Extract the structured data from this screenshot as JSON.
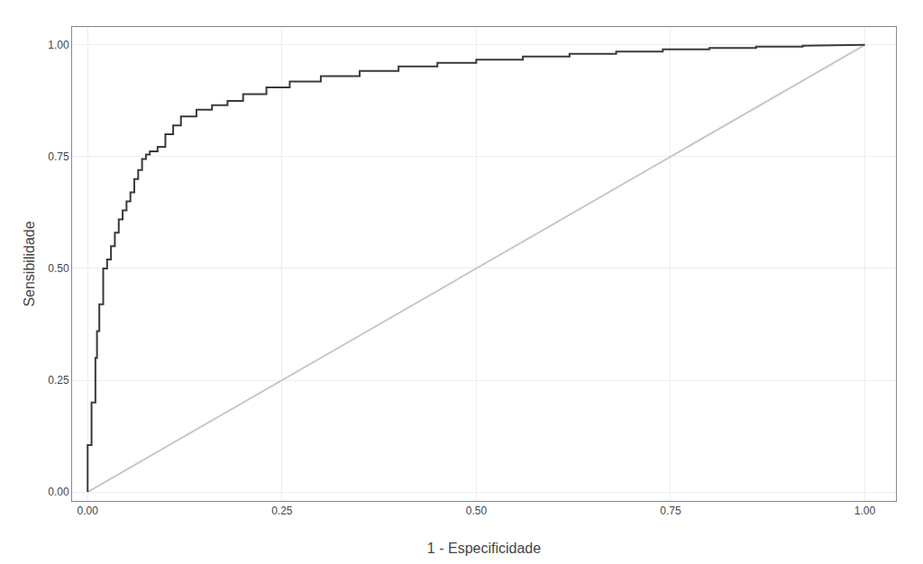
{
  "chart_data": {
    "type": "line",
    "xlabel": "1 - Especificidade",
    "ylabel": "Sensibilidade",
    "grid": true,
    "xlim": [
      -0.02,
      1.04
    ],
    "ylim": [
      -0.02,
      1.04
    ],
    "xticks": [
      {
        "value": 0.0,
        "label": "0.00"
      },
      {
        "value": 0.25,
        "label": "0.25"
      },
      {
        "value": 0.5,
        "label": "0.50"
      },
      {
        "value": 0.75,
        "label": "0.75"
      },
      {
        "value": 1.0,
        "label": "1.00"
      }
    ],
    "yticks": [
      {
        "value": 0.0,
        "label": "0.00"
      },
      {
        "value": 0.25,
        "label": "0.25"
      },
      {
        "value": 0.5,
        "label": "0.50"
      },
      {
        "value": 0.75,
        "label": "0.75"
      },
      {
        "value": 1.0,
        "label": "1.00"
      }
    ],
    "series": [
      {
        "color": "#c8c8c8",
        "x": [
          0,
          1
        ],
        "values": [
          0,
          1
        ]
      },
      {
        "color": "#3a3a3a",
        "x": [
          0.0,
          0.0,
          0.005,
          0.005,
          0.01,
          0.01,
          0.012,
          0.012,
          0.015,
          0.015,
          0.02,
          0.02,
          0.025,
          0.025,
          0.03,
          0.03,
          0.035,
          0.035,
          0.04,
          0.04,
          0.045,
          0.045,
          0.05,
          0.05,
          0.055,
          0.055,
          0.06,
          0.06,
          0.065,
          0.065,
          0.07,
          0.07,
          0.075,
          0.075,
          0.08,
          0.08,
          0.09,
          0.09,
          0.1,
          0.1,
          0.11,
          0.11,
          0.12,
          0.12,
          0.14,
          0.14,
          0.16,
          0.16,
          0.18,
          0.18,
          0.2,
          0.2,
          0.23,
          0.23,
          0.26,
          0.26,
          0.3,
          0.3,
          0.35,
          0.35,
          0.4,
          0.4,
          0.45,
          0.45,
          0.5,
          0.5,
          0.56,
          0.56,
          0.62,
          0.62,
          0.68,
          0.68,
          0.74,
          0.74,
          0.8,
          0.8,
          0.86,
          0.86,
          0.92,
          0.92,
          1.0
        ],
        "values": [
          0.0,
          0.105,
          0.105,
          0.2,
          0.2,
          0.3,
          0.3,
          0.36,
          0.36,
          0.42,
          0.42,
          0.5,
          0.5,
          0.52,
          0.52,
          0.55,
          0.55,
          0.58,
          0.58,
          0.61,
          0.61,
          0.63,
          0.63,
          0.65,
          0.65,
          0.67,
          0.67,
          0.7,
          0.7,
          0.72,
          0.72,
          0.745,
          0.745,
          0.755,
          0.755,
          0.762,
          0.762,
          0.772,
          0.772,
          0.8,
          0.8,
          0.82,
          0.82,
          0.84,
          0.84,
          0.855,
          0.855,
          0.865,
          0.865,
          0.875,
          0.875,
          0.89,
          0.89,
          0.905,
          0.905,
          0.918,
          0.918,
          0.93,
          0.93,
          0.942,
          0.942,
          0.952,
          0.952,
          0.96,
          0.96,
          0.967,
          0.967,
          0.974,
          0.974,
          0.98,
          0.98,
          0.985,
          0.985,
          0.99,
          0.99,
          0.993,
          0.993,
          0.996,
          0.996,
          0.998,
          1.0
        ]
      }
    ]
  }
}
